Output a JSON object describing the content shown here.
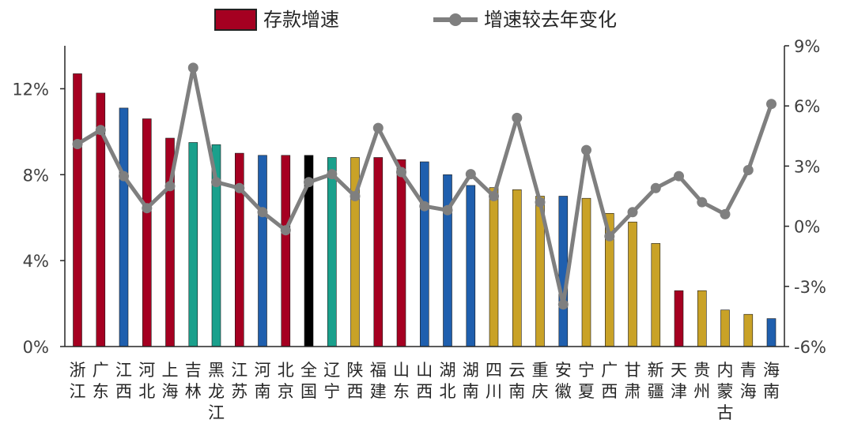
{
  "chart_data": {
    "type": "bar+line",
    "categories": [
      [
        "浙",
        "江"
      ],
      [
        "广",
        "东"
      ],
      [
        "江",
        "西"
      ],
      [
        "河",
        "北"
      ],
      [
        "上",
        "海"
      ],
      [
        "吉",
        "林"
      ],
      [
        "黑",
        "龙",
        "江"
      ],
      [
        "江",
        "苏"
      ],
      [
        "河",
        "南"
      ],
      [
        "北",
        "京"
      ],
      [
        "全",
        "国"
      ],
      [
        "辽",
        "宁"
      ],
      [
        "陕",
        "西"
      ],
      [
        "福",
        "建"
      ],
      [
        "山",
        "东"
      ],
      [
        "山",
        "西"
      ],
      [
        "湖",
        "北"
      ],
      [
        "湖",
        "南"
      ],
      [
        "四",
        "川"
      ],
      [
        "云",
        "南"
      ],
      [
        "重",
        "庆"
      ],
      [
        "安",
        "徽"
      ],
      [
        "宁",
        "夏"
      ],
      [
        "广",
        "西"
      ],
      [
        "甘",
        "肃"
      ],
      [
        "新",
        "疆"
      ],
      [
        "天",
        "津"
      ],
      [
        "贵",
        "州"
      ],
      [
        "内",
        "蒙",
        "古"
      ],
      [
        "青",
        "海"
      ],
      [
        "海",
        "南"
      ]
    ],
    "series": [
      {
        "name": "存款增速",
        "type": "bar",
        "axis": "left",
        "values": [
          12.7,
          11.8,
          11.1,
          10.6,
          9.7,
          9.5,
          9.4,
          9.0,
          8.9,
          8.9,
          8.9,
          8.8,
          8.8,
          8.8,
          8.7,
          8.6,
          8.0,
          7.5,
          7.4,
          7.3,
          7.0,
          7.0,
          6.9,
          6.2,
          5.8,
          4.8,
          2.6,
          2.6,
          1.7,
          1.5,
          1.3
        ],
        "colors": [
          "#a50021",
          "#a50021",
          "#1f5fae",
          "#a50021",
          "#a50021",
          "#1aa08c",
          "#1aa08c",
          "#a50021",
          "#1f5fae",
          "#a50021",
          "#000000",
          "#1aa08c",
          "#c9a227",
          "#a50021",
          "#a50021",
          "#1f5fae",
          "#1f5fae",
          "#1f5fae",
          "#c9a227",
          "#c9a227",
          "#c9a227",
          "#1f5fae",
          "#c9a227",
          "#c9a227",
          "#c9a227",
          "#c9a227",
          "#a50021",
          "#c9a227",
          "#c9a227",
          "#c9a227",
          "#1f5fae"
        ]
      },
      {
        "name": "增速较去年变化",
        "type": "line",
        "axis": "right",
        "color": "#7f7f7f",
        "values": [
          4.1,
          4.8,
          2.5,
          0.9,
          2.0,
          7.9,
          2.2,
          1.9,
          0.7,
          -0.2,
          2.2,
          2.6,
          1.5,
          4.9,
          2.7,
          1.0,
          0.8,
          2.6,
          1.5,
          5.4,
          1.2,
          -3.9,
          3.8,
          -0.5,
          0.7,
          1.9,
          2.5,
          1.2,
          0.6,
          2.8,
          6.1
        ]
      }
    ],
    "left_axis": {
      "ylim": [
        0,
        14
      ],
      "ticks": [
        0,
        4,
        8,
        12
      ],
      "tick_labels": [
        "0%",
        "4%",
        "8%",
        "12%"
      ]
    },
    "right_axis": {
      "ylim": [
        -6,
        9
      ],
      "ticks": [
        -6,
        -3,
        0,
        3,
        6,
        9
      ],
      "tick_labels": [
        "-6%",
        "-3%",
        "0%",
        "3%",
        "6%",
        "9%"
      ]
    },
    "legend": {
      "placement": "top-center"
    },
    "grid": false
  }
}
